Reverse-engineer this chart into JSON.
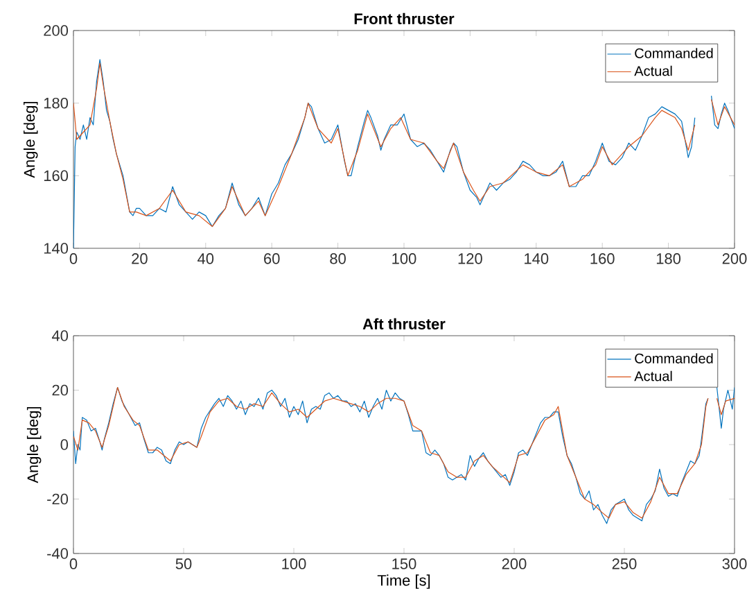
{
  "chart_data": [
    {
      "type": "line",
      "title": "Front thruster",
      "ylabel": "Angle [deg]",
      "xlim": [
        0,
        200
      ],
      "ylim": [
        140,
        200
      ],
      "xticks": [
        0,
        20,
        40,
        60,
        80,
        100,
        120,
        140,
        160,
        180,
        200
      ],
      "yticks": [
        140,
        160,
        180,
        200
      ],
      "legend": "top right",
      "grid": false,
      "series": [
        {
          "name": "Commanded",
          "color": "#0072bd",
          "x": [
            0,
            0.5,
            1,
            2,
            3,
            4,
            5,
            6,
            7,
            8,
            9,
            10,
            11,
            12,
            13,
            14,
            15,
            16,
            17,
            18,
            19,
            20,
            22,
            24,
            26,
            28,
            30,
            32,
            34,
            36,
            38,
            40,
            42,
            44,
            46,
            48,
            50,
            52,
            54,
            56,
            58,
            60,
            62,
            64,
            66,
            68,
            70,
            71,
            72,
            74,
            76,
            78,
            80,
            82,
            83,
            84,
            86,
            88,
            89,
            90,
            92,
            93,
            94,
            96,
            98,
            100,
            102,
            104,
            106,
            108,
            110,
            112,
            114,
            115,
            116,
            118,
            120,
            122,
            123,
            124,
            126,
            128,
            130,
            132,
            134,
            136,
            138,
            140,
            142,
            144,
            146,
            148,
            150,
            152,
            154,
            156,
            158,
            160,
            162,
            164,
            166,
            168,
            170,
            172,
            174,
            176,
            178,
            180,
            182,
            184,
            185,
            186,
            187,
            188,
            189,
            192,
            193,
            194,
            195,
            196,
            197,
            198,
            200
          ],
          "values": [
            140,
            168,
            172,
            170,
            174,
            170,
            176,
            174,
            186,
            192,
            186,
            178,
            175,
            170,
            166,
            163,
            160,
            155,
            150,
            149,
            151,
            151,
            149,
            149,
            151,
            150,
            157,
            152,
            150,
            148,
            150,
            149,
            146,
            149,
            151,
            158,
            152,
            149,
            151,
            154,
            149,
            155,
            158,
            163,
            166,
            170,
            176,
            180,
            179,
            173,
            169,
            170,
            174,
            164,
            160,
            160,
            168,
            175,
            178,
            176,
            171,
            167,
            170,
            174,
            174,
            177,
            170,
            168,
            169,
            167,
            164,
            161,
            167,
            169,
            168,
            161,
            156,
            154,
            152,
            154,
            158,
            156,
            158,
            159,
            161,
            164,
            163,
            161,
            160,
            160,
            161,
            164,
            157,
            157,
            160,
            160,
            164,
            169,
            164,
            163,
            165,
            169,
            167,
            171,
            176,
            177,
            179,
            178,
            177,
            175,
            170,
            165,
            168,
            176,
            null,
            null,
            182,
            174,
            173,
            177,
            180,
            178,
            173
          ]
        },
        {
          "name": "Actual",
          "color": "#d95319",
          "x": [
            0,
            1,
            3,
            5,
            7,
            8,
            9,
            11,
            13,
            15,
            17,
            19,
            22,
            26,
            30,
            34,
            38,
            42,
            46,
            48,
            52,
            56,
            58,
            62,
            66,
            70,
            71,
            74,
            78,
            80,
            83,
            86,
            89,
            93,
            96,
            99,
            102,
            106,
            110,
            112,
            115,
            118,
            121,
            123,
            126,
            130,
            136,
            140,
            144,
            148,
            150,
            154,
            158,
            160,
            163,
            168,
            172,
            176,
            178,
            182,
            184,
            186,
            188,
            189,
            192,
            193,
            195,
            197,
            200
          ],
          "values": [
            180,
            170,
            172,
            174,
            184,
            191,
            185,
            175,
            166,
            159,
            150,
            150,
            149,
            151,
            156,
            150,
            149,
            146,
            151,
            157,
            149,
            153,
            149,
            157,
            166,
            176,
            180,
            173,
            169,
            173,
            160,
            167,
            177,
            168,
            173,
            176,
            170,
            169,
            164,
            162,
            169,
            161,
            156,
            153,
            157,
            158,
            163,
            161,
            160,
            163,
            157,
            159,
            163,
            168,
            163,
            168,
            171,
            176,
            178,
            176,
            173,
            167,
            174,
            null,
            null,
            181,
            174,
            179,
            174
          ]
        }
      ]
    },
    {
      "type": "line",
      "title": "Aft thruster",
      "xlabel": "Time [s]",
      "ylabel": "Angle [deg]",
      "xlim": [
        0,
        300
      ],
      "ylim": [
        -40,
        40
      ],
      "xticks": [
        0,
        50,
        100,
        150,
        200,
        250,
        300
      ],
      "yticks": [
        -40,
        -20,
        0,
        20,
        40
      ],
      "legend": "top right",
      "grid": false,
      "series": [
        {
          "name": "Commanded",
          "color": "#0072bd",
          "x": [
            0,
            1,
            2,
            3,
            4,
            6,
            8,
            10,
            12,
            13,
            14,
            16,
            18,
            20,
            22,
            24,
            26,
            28,
            30,
            32,
            34,
            36,
            38,
            40,
            42,
            44,
            46,
            48,
            50,
            52,
            54,
            56,
            58,
            60,
            64,
            66,
            68,
            70,
            72,
            74,
            76,
            78,
            80,
            82,
            84,
            86,
            88,
            90,
            92,
            94,
            96,
            98,
            100,
            102,
            104,
            106,
            108,
            110,
            112,
            114,
            116,
            118,
            120,
            122,
            124,
            126,
            128,
            130,
            132,
            134,
            136,
            138,
            140,
            142,
            144,
            146,
            148,
            150,
            152,
            154,
            156,
            158,
            160,
            162,
            164,
            166,
            168,
            170,
            172,
            174,
            176,
            178,
            180,
            182,
            184,
            186,
            188,
            190,
            192,
            194,
            196,
            198,
            200,
            202,
            204,
            206,
            208,
            210,
            212,
            214,
            216,
            218,
            220,
            222,
            224,
            226,
            228,
            230,
            232,
            234,
            236,
            238,
            240,
            242,
            244,
            246,
            248,
            250,
            252,
            254,
            256,
            258,
            260,
            262,
            264,
            266,
            268,
            270,
            272,
            274,
            276,
            278,
            280,
            282,
            284,
            285,
            287,
            288,
            289,
            291,
            292,
            294,
            295,
            297,
            299,
            300
          ],
          "values": [
            5,
            -7,
            0,
            -2,
            10,
            9,
            5,
            6,
            1,
            -2,
            2,
            8,
            15,
            21,
            16,
            13,
            10,
            7,
            8,
            2,
            -3,
            -3,
            -1,
            -2,
            -6,
            -7,
            -2,
            1,
            0,
            1,
            0,
            -1,
            6,
            10,
            15,
            17,
            14,
            18,
            16,
            13,
            16,
            11,
            15,
            14,
            17,
            13,
            19,
            20,
            18,
            14,
            17,
            10,
            14,
            11,
            16,
            8,
            13,
            14,
            13,
            18,
            19,
            17,
            18,
            16,
            16,
            14,
            15,
            12,
            16,
            10,
            14,
            17,
            13,
            20,
            16,
            19,
            17,
            16,
            11,
            5,
            5,
            5,
            -3,
            -4,
            -2,
            -4,
            -7,
            -12,
            -13,
            -12,
            -11,
            -13,
            -4,
            -8,
            -5,
            -3,
            -6,
            -8,
            -10,
            -12,
            -11,
            -15,
            -10,
            -3,
            -2,
            -4,
            0,
            4,
            8,
            10,
            10,
            12,
            12,
            3,
            -4,
            -7,
            -12,
            -18,
            -20,
            -17,
            -24,
            -22,
            -26,
            -29,
            -24,
            -22,
            -21,
            -20,
            -24,
            -26,
            -27,
            -28,
            -22,
            -20,
            -17,
            -9,
            -16,
            -19,
            -18,
            -19,
            -14,
            -10,
            -6,
            -7,
            -4,
            2,
            15,
            17,
            null,
            null,
            21,
            6,
            13,
            20,
            13,
            21
          ]
        },
        {
          "name": "Actual",
          "color": "#d95319",
          "x": [
            0,
            2,
            4,
            7,
            10,
            13,
            16,
            20,
            23,
            27,
            30,
            34,
            38,
            44,
            48,
            52,
            56,
            58,
            62,
            66,
            70,
            74,
            78,
            82,
            86,
            90,
            94,
            98,
            102,
            106,
            110,
            114,
            118,
            122,
            126,
            130,
            134,
            138,
            142,
            146,
            150,
            154,
            158,
            162,
            166,
            170,
            174,
            178,
            182,
            186,
            190,
            194,
            198,
            202,
            206,
            210,
            214,
            218,
            220,
            224,
            228,
            232,
            236,
            240,
            243,
            246,
            250,
            254,
            258,
            262,
            266,
            270,
            274,
            278,
            282,
            285,
            287,
            288,
            289,
            291,
            292,
            294,
            296,
            300
          ],
          "values": [
            3,
            -2,
            9,
            8,
            5,
            -1,
            7,
            21,
            14,
            9,
            7,
            -2,
            -2,
            -6,
            0,
            1,
            -1,
            3,
            12,
            16,
            17,
            14,
            13,
            15,
            14,
            19,
            15,
            12,
            13,
            10,
            13,
            16,
            17,
            16,
            15,
            14,
            12,
            15,
            17,
            17,
            16,
            7,
            5,
            -3,
            -4,
            -10,
            -12,
            -12,
            -6,
            -4,
            -8,
            -11,
            -14,
            -4,
            -3,
            3,
            9,
            11,
            14,
            -4,
            -12,
            -20,
            -22,
            -25,
            -27,
            -22,
            -21,
            -25,
            -27,
            -21,
            -12,
            -18,
            -18,
            -11,
            -7,
            0,
            14,
            17,
            null,
            null,
            17,
            11,
            16,
            17
          ]
        }
      ]
    }
  ]
}
